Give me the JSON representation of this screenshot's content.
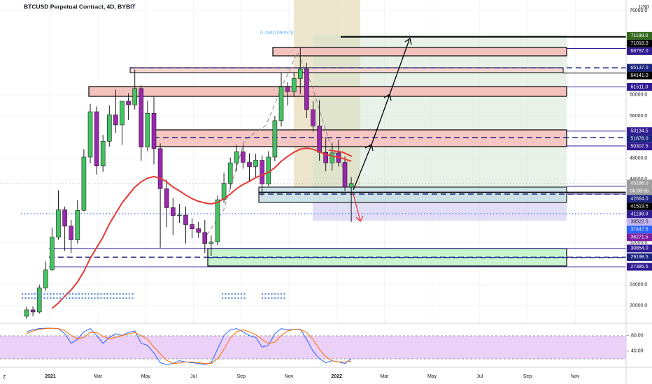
{
  "chart_data": {
    "type": "candlestick",
    "title": "BTCUSD Perpetual Contract, 4D, BYBIT",
    "currency": "USD",
    "annotation": "0.786(70909.5)",
    "countdown": "06:38:55",
    "ylim": [
      16800,
      78000
    ],
    "yticks": [
      {
        "value": 76000,
        "label": "76000.0"
      },
      {
        "value": 60000,
        "label": "60000.0"
      },
      {
        "value": 56000,
        "label": "56000.0"
      },
      {
        "value": 48000,
        "label": "48000.0"
      },
      {
        "value": 44000,
        "label": "44000.0"
      },
      {
        "value": 32000,
        "label": "32000.0"
      },
      {
        "value": 24000,
        "label": "24000.0"
      },
      {
        "value": 20000,
        "label": "20000.0"
      }
    ],
    "grid": true,
    "up_color": "#43c463",
    "down_color": "#9c27b0",
    "time_labels": [
      "2021",
      "Mar",
      "May",
      "Jul",
      "Sep",
      "Nov",
      "2022",
      "Mar",
      "May",
      "Jul",
      "Sep",
      "Nov"
    ],
    "candles": {
      "open": [
        18000,
        19200,
        18800,
        23400,
        26800,
        33000,
        38200,
        35100,
        32500,
        38100,
        48200,
        56800,
        46500,
        51200,
        56200,
        54300,
        58800,
        58100,
        61200,
        50100,
        56500,
        49800,
        42200,
        38600,
        37100,
        37200,
        35400,
        34600,
        33900,
        31800,
        32100,
        40100,
        43200,
        47100,
        49200,
        47200,
        46400,
        47600,
        43100,
        48200,
        55100,
        61500,
        60600,
        63100,
        64900,
        57200,
        54100,
        49100,
        47100,
        49000,
        47200,
        42500
      ],
      "high": [
        19800,
        19900,
        24000,
        28400,
        34800,
        41900,
        38800,
        36300,
        40000,
        49700,
        58300,
        57800,
        52400,
        58000,
        61000,
        58000,
        60300,
        64800,
        61800,
        58900,
        59600,
        50800,
        43900,
        40400,
        39300,
        38800,
        36600,
        35900,
        36300,
        33300,
        40900,
        45200,
        48100,
        50500,
        50500,
        48900,
        48800,
        48500,
        49300,
        56000,
        64200,
        62400,
        64200,
        69000,
        66100,
        58800,
        59000,
        52000,
        50900,
        51500,
        48300,
        44400
      ],
      "low": [
        17500,
        18000,
        18500,
        22800,
        26600,
        32500,
        30400,
        30000,
        31800,
        37900,
        47000,
        44900,
        45400,
        50200,
        52800,
        50500,
        55200,
        57200,
        47500,
        49300,
        46800,
        31000,
        34900,
        33400,
        35700,
        31800,
        32800,
        32900,
        30000,
        29400,
        31500,
        39500,
        42200,
        45500,
        46000,
        43500,
        44200,
        40800,
        42700,
        47400,
        54000,
        58000,
        59600,
        60200,
        55600,
        53000,
        47500,
        45500,
        45600,
        46400,
        41800,
        35900
      ],
      "close": [
        19200,
        18800,
        23400,
        26800,
        33000,
        38200,
        35100,
        32500,
        38100,
        48200,
        56800,
        46500,
        51200,
        56200,
        54300,
        58800,
        58100,
        61200,
        50100,
        56500,
        49800,
        42200,
        38600,
        37100,
        37200,
        35400,
        34600,
        33900,
        31800,
        32100,
        40100,
        43200,
        47100,
        49200,
        47200,
        46400,
        47600,
        43100,
        48200,
        55100,
        61500,
        60600,
        63100,
        64900,
        57200,
        54100,
        49100,
        47100,
        49000,
        47200,
        42500,
        43186
      ]
    },
    "moving_average": {
      "color": "#e53935",
      "values": [
        null,
        null,
        null,
        null,
        19500,
        20500,
        21800,
        23000,
        24500,
        26500,
        29000,
        31000,
        33000,
        35500,
        37500,
        39500,
        41000,
        42500,
        43500,
        44200,
        44500,
        44200,
        43500,
        42500,
        41800,
        41000,
        40300,
        39800,
        39500,
        39300,
        39600,
        40300,
        41200,
        42200,
        43000,
        43600,
        44300,
        44800,
        45300,
        46200,
        47400,
        48300,
        49100,
        49700,
        49900,
        49700,
        49200,
        48700,
        48400,
        48200,
        47800,
        47400
      ]
    },
    "levels": [
      {
        "value": 71199,
        "label": "71199.0",
        "color": "#33691e"
      },
      {
        "value": 71018,
        "label": "71018.0",
        "color": "#000000"
      },
      {
        "value": 68797,
        "label": "68797.0",
        "color": "#311b92"
      },
      {
        "value": 65137,
        "label": "65137.0",
        "color": "#1a237e"
      },
      {
        "value": 64141,
        "label": "64141.0",
        "color": "#000000"
      },
      {
        "value": 61511,
        "label": "61511.0",
        "color": "#311b92"
      },
      {
        "value": 53134.5,
        "label": "53134.5",
        "color": "#311b92"
      },
      {
        "value": 51878,
        "label": "51878.0",
        "color": "#1a237e"
      },
      {
        "value": 50307.5,
        "label": "50307.5",
        "color": "#311b92"
      },
      {
        "value": 43186,
        "label": "43186.0",
        "color": "#9e9e9e",
        "current": true
      },
      {
        "value": 42664,
        "label": "42664.0",
        "color": "#1a237e"
      },
      {
        "value": 41519.5,
        "label": "41519.5",
        "color": "#000000"
      },
      {
        "value": 41198,
        "label": "41198.0",
        "color": "#311b92"
      },
      {
        "value": 39522.5,
        "label": "39522.5",
        "color": "#c5b8f0"
      },
      {
        "value": 37447.5,
        "label": "37447.5",
        "color": "#2962ff"
      },
      {
        "value": 36271.5,
        "label": "36271.5",
        "color": "#7b1fa2"
      },
      {
        "value": 30854,
        "label": "30854.0",
        "color": "#311b92"
      },
      {
        "value": 29198.5,
        "label": "29198.5",
        "color": "#1a237e"
      },
      {
        "value": 27385.5,
        "label": "27385.5",
        "color": "#311b92"
      }
    ],
    "oscillator": {
      "ylim": [
        0,
        110
      ],
      "yticks": [
        {
          "value": 80,
          "label": "80.00"
        },
        {
          "value": 40,
          "label": "40.00"
        }
      ],
      "series": [
        {
          "color": "#2962ff",
          "values": [
            90,
            95,
            98,
            99,
            99,
            98,
            85,
            60,
            70,
            90,
            98,
            80,
            60,
            75,
            85,
            80,
            88,
            92,
            60,
            55,
            35,
            10,
            5,
            8,
            15,
            12,
            10,
            8,
            5,
            10,
            45,
            80,
            95,
            98,
            90,
            80,
            75,
            50,
            55,
            85,
            98,
            95,
            96,
            97,
            70,
            40,
            20,
            10,
            15,
            12,
            8,
            20
          ]
        },
        {
          "color": "#ff6d00",
          "values": [
            85,
            92,
            96,
            98,
            99,
            98,
            93,
            80,
            72,
            75,
            88,
            88,
            78,
            72,
            75,
            80,
            84,
            88,
            80,
            70,
            50,
            33,
            16,
            8,
            9,
            12,
            12,
            10,
            8,
            8,
            20,
            45,
            73,
            90,
            95,
            90,
            82,
            70,
            60,
            63,
            80,
            92,
            96,
            96,
            88,
            70,
            45,
            25,
            15,
            12,
            12,
            14
          ]
        }
      ]
    }
  }
}
